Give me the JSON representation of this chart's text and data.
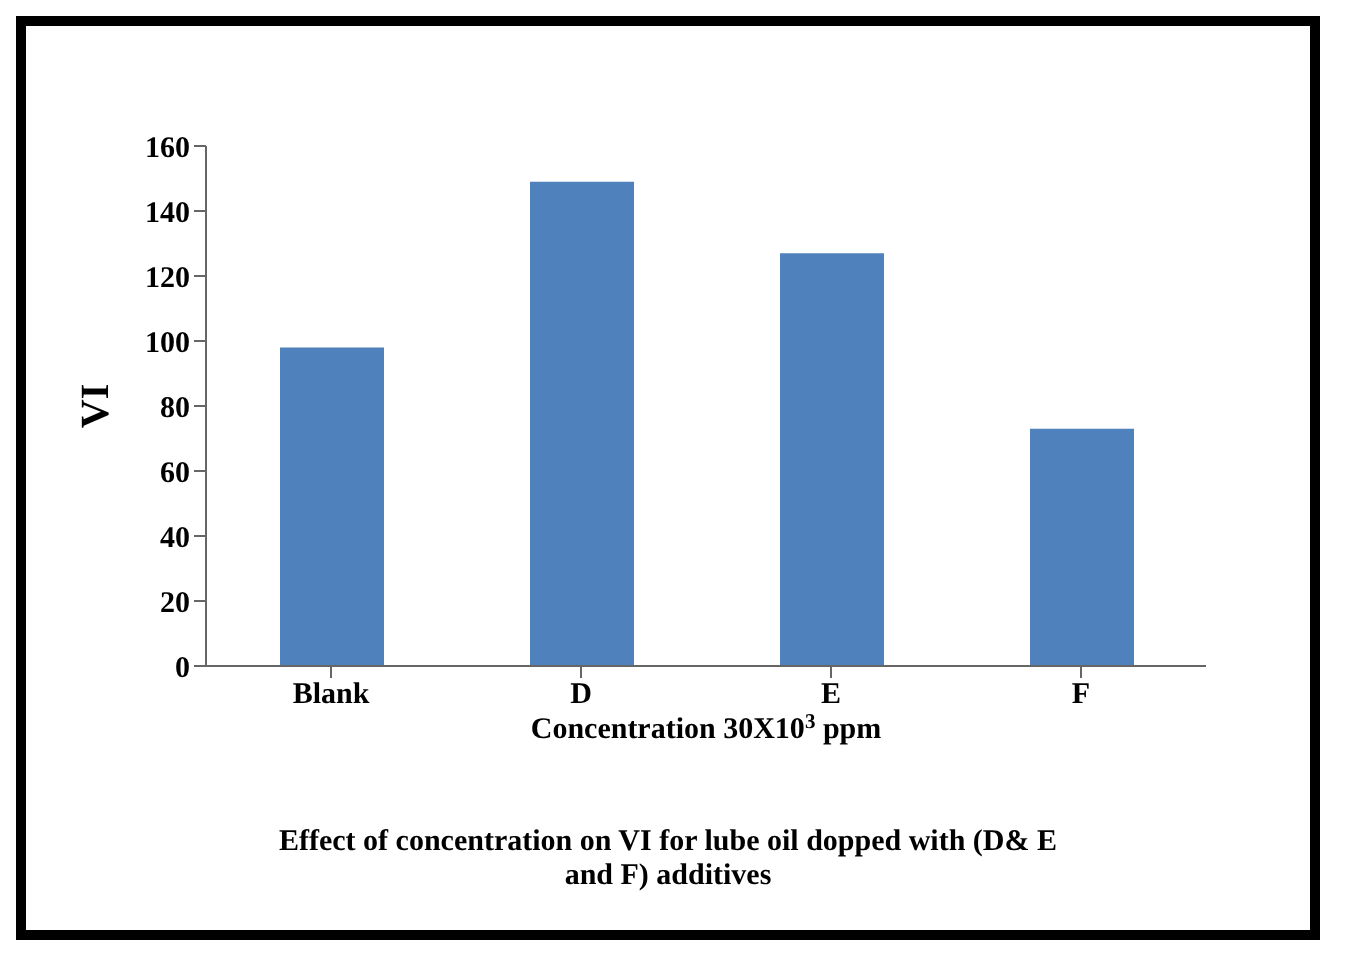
{
  "chart_data": {
    "type": "bar",
    "categories": [
      "Blank",
      "D",
      "E",
      "F"
    ],
    "values": [
      98,
      149,
      127,
      73
    ],
    "color": "#4f81bd",
    "ylabel": "VI",
    "xlabel": "Concentration 30X10$^{3}$ ppm",
    "annotations": [
      "Effect of concentration on VI for lube oil dopped with (D& E and F) additives"
    ],
    "ylim": [
      0,
      160
    ],
    "yticks": [
      0,
      20,
      40,
      60,
      80,
      100,
      120,
      140,
      160
    ],
    "grid": false,
    "legend": false
  }
}
